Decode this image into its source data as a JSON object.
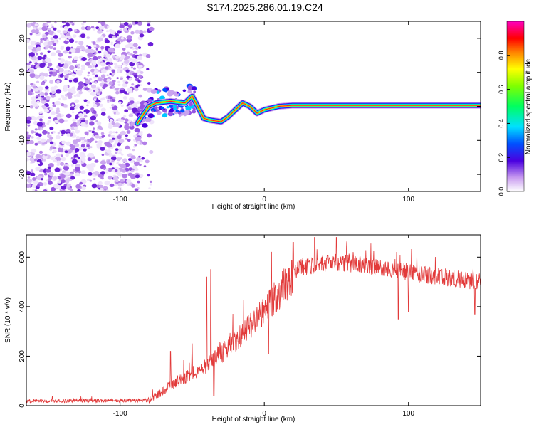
{
  "figure_title": "S174.2025.286.01.19.C24",
  "chart_data": [
    {
      "type": "heatmap",
      "xlabel": "Height of straight line (km)",
      "ylabel": "Frequency (Hz)",
      "xlim": [
        -165,
        150
      ],
      "ylim": [
        -25,
        25
      ],
      "x_ticks": [
        -100,
        0,
        100
      ],
      "y_ticks": [
        20,
        10,
        0,
        -10,
        -20
      ],
      "colorbar": {
        "label": "Normalized spectral amplitude",
        "range": [
          0,
          1
        ],
        "ticks": [
          "0.0",
          "0.2",
          "0.4",
          "0.6",
          "0.8"
        ]
      },
      "noise_region_km": [
        -165,
        -85
      ],
      "ridge_frequency_hz": [
        {
          "x": -88,
          "y": -5
        },
        {
          "x": -85,
          "y": -3
        },
        {
          "x": -80,
          "y": 0
        },
        {
          "x": -75,
          "y": 1
        },
        {
          "x": -65,
          "y": 1.5
        },
        {
          "x": -55,
          "y": 1
        },
        {
          "x": -50,
          "y": 3
        },
        {
          "x": -45,
          "y": -1
        },
        {
          "x": -42,
          "y": -3.5
        },
        {
          "x": -38,
          "y": -4
        },
        {
          "x": -30,
          "y": -4.5
        },
        {
          "x": -25,
          "y": -3
        },
        {
          "x": -20,
          "y": -1
        },
        {
          "x": -15,
          "y": 1
        },
        {
          "x": -10,
          "y": 0
        },
        {
          "x": -5,
          "y": -2
        },
        {
          "x": 0,
          "y": -1
        },
        {
          "x": 10,
          "y": 0
        },
        {
          "x": 20,
          "y": 0.3
        },
        {
          "x": 150,
          "y": 0.3
        }
      ]
    },
    {
      "type": "line",
      "xlabel": "Height of straight line (km)",
      "ylabel": "SNR (10 * v/v)",
      "xlim": [
        -165,
        150
      ],
      "ylim": [
        0,
        690
      ],
      "x_ticks": [
        -100,
        0,
        100
      ],
      "y_ticks": [
        0,
        200,
        400,
        600
      ],
      "color": "#e23a3a",
      "envelope": [
        {
          "x": -165,
          "y": 18
        },
        {
          "x": -80,
          "y": 22
        },
        {
          "x": -70,
          "y": 60
        },
        {
          "x": -60,
          "y": 100
        },
        {
          "x": -40,
          "y": 160
        },
        {
          "x": -20,
          "y": 260
        },
        {
          "x": 0,
          "y": 380
        },
        {
          "x": 10,
          "y": 460
        },
        {
          "x": 25,
          "y": 560
        },
        {
          "x": 50,
          "y": 580
        },
        {
          "x": 80,
          "y": 560
        },
        {
          "x": 110,
          "y": 530
        },
        {
          "x": 150,
          "y": 500
        }
      ],
      "spikes": [
        {
          "x": -65,
          "y": 220
        },
        {
          "x": -50,
          "y": 250
        },
        {
          "x": -40,
          "y": 520
        },
        {
          "x": -37,
          "y": 550
        },
        {
          "x": 5,
          "y": 620
        },
        {
          "x": 20,
          "y": 660
        },
        {
          "x": 35,
          "y": 680
        },
        {
          "x": 50,
          "y": 680
        }
      ],
      "dips": [
        {
          "x": -35,
          "y": 40
        },
        {
          "x": 3,
          "y": 210
        },
        {
          "x": 93,
          "y": 350
        },
        {
          "x": 100,
          "y": 380
        },
        {
          "x": 146,
          "y": 370
        }
      ]
    }
  ]
}
